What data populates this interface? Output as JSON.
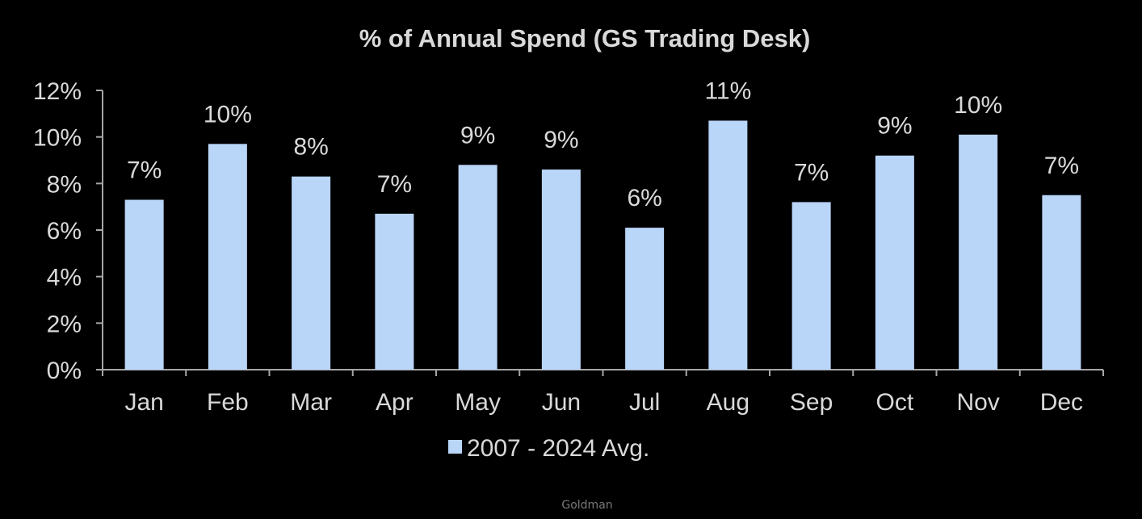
{
  "colors": {
    "background": "#000000",
    "bar": "#b9d5f8",
    "axis": "#a6a6a6",
    "text": "#d9d9d9",
    "source": "#7a7a7a"
  },
  "source": "Goldman",
  "chart_data": {
    "type": "bar",
    "title": "% of Annual Spend (GS Trading Desk)",
    "xlabel": "",
    "ylabel": "",
    "categories": [
      "Jan",
      "Feb",
      "Mar",
      "Apr",
      "May",
      "Jun",
      "Jul",
      "Aug",
      "Sep",
      "Oct",
      "Nov",
      "Dec"
    ],
    "series": [
      {
        "name": "2007 - 2024 Avg.",
        "values": [
          7.3,
          9.7,
          8.3,
          6.7,
          8.8,
          8.6,
          6.1,
          10.7,
          7.2,
          9.2,
          10.1,
          7.5
        ],
        "data_labels": [
          "7%",
          "10%",
          "8%",
          "7%",
          "9%",
          "9%",
          "6%",
          "11%",
          "7%",
          "9%",
          "10%",
          "7%"
        ]
      }
    ],
    "ylim": [
      0,
      12
    ],
    "yticks": [
      0,
      2,
      4,
      6,
      8,
      10,
      12
    ],
    "ytick_labels": [
      "0%",
      "2%",
      "4%",
      "6%",
      "8%",
      "10%",
      "12%"
    ],
    "grid": false,
    "legend": "bottom"
  }
}
